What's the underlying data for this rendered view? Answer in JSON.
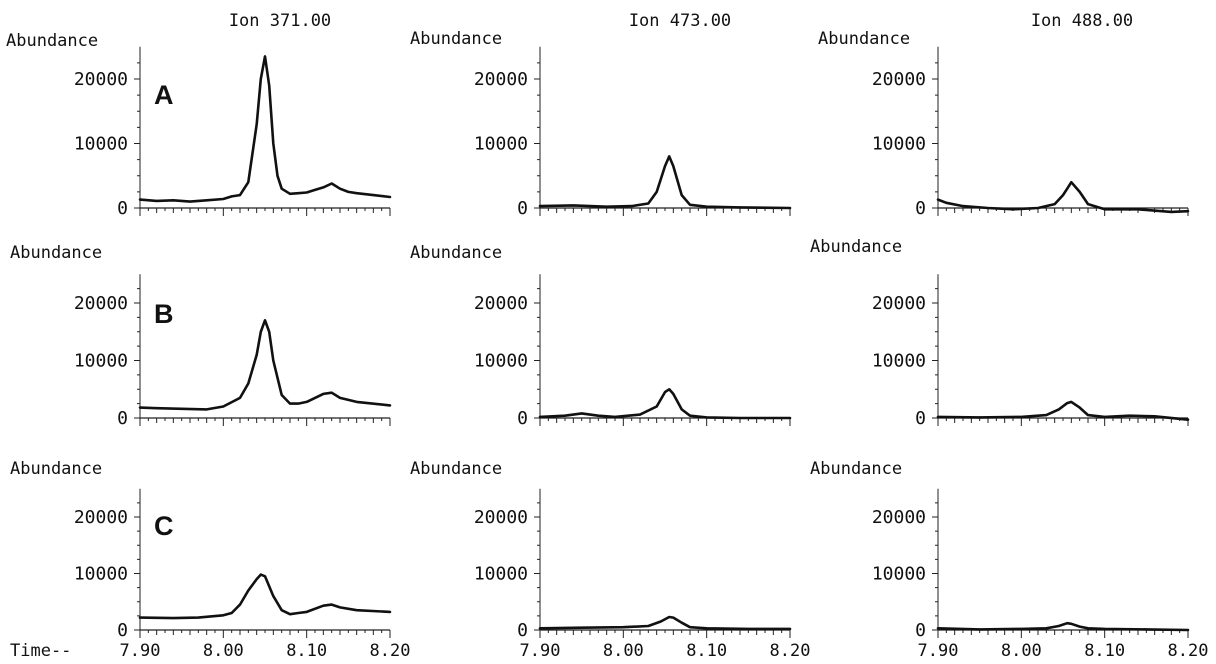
{
  "chart_data": [
    {
      "type": "line",
      "panel": "A",
      "ion": "Ion 371.00",
      "ylabel": "Abundance",
      "xlim": [
        7.9,
        8.2
      ],
      "ylim": [
        0,
        25000
      ],
      "yticks": [
        0,
        10000,
        20000
      ],
      "xticks": [
        7.9,
        8.0,
        8.1,
        8.2
      ],
      "series": [
        {
          "x": [
            7.9,
            7.92,
            7.94,
            7.96,
            7.98,
            8.0,
            8.01,
            8.02,
            8.03,
            8.04,
            8.045,
            8.05,
            8.055,
            8.06,
            8.065,
            8.07,
            8.08,
            8.09,
            8.1,
            8.11,
            8.12,
            8.13,
            8.14,
            8.15,
            8.16,
            8.18,
            8.2
          ],
          "y": [
            1300,
            1100,
            1200,
            1000,
            1200,
            1400,
            1800,
            2000,
            4000,
            13000,
            20000,
            23500,
            19000,
            10000,
            5000,
            3000,
            2200,
            2300,
            2400,
            2800,
            3200,
            3800,
            3000,
            2500,
            2300,
            2000,
            1700
          ]
        }
      ]
    },
    {
      "type": "line",
      "panel": "A",
      "ion": "Ion 473.00",
      "ylabel": "Abundance",
      "xlim": [
        7.9,
        8.2
      ],
      "ylim": [
        0,
        25000
      ],
      "yticks": [
        0,
        10000,
        20000
      ],
      "xticks": [
        7.9,
        8.0,
        8.1,
        8.2
      ],
      "series": [
        {
          "x": [
            7.9,
            7.94,
            7.98,
            8.01,
            8.03,
            8.04,
            8.05,
            8.055,
            8.06,
            8.07,
            8.08,
            8.1,
            8.14,
            8.2
          ],
          "y": [
            300,
            400,
            200,
            300,
            700,
            2500,
            6500,
            8000,
            6500,
            2000,
            500,
            200,
            100,
            0
          ]
        }
      ]
    },
    {
      "type": "line",
      "panel": "A",
      "ion": "Ion 488.00",
      "ylabel": "Abundance",
      "xlim": [
        7.9,
        8.2
      ],
      "ylim": [
        0,
        25000
      ],
      "yticks": [
        0,
        10000,
        20000
      ],
      "xticks": [
        7.9,
        8.0,
        8.1,
        8.2
      ],
      "series": [
        {
          "x": [
            7.9,
            7.91,
            7.93,
            7.96,
            7.99,
            8.02,
            8.04,
            8.05,
            8.055,
            8.06,
            8.07,
            8.08,
            8.1,
            8.14,
            8.18,
            8.2
          ],
          "y": [
            1300,
            800,
            300,
            0,
            -200,
            0,
            600,
            2000,
            3000,
            4000,
            2500,
            600,
            -200,
            -200,
            -600,
            -500
          ]
        }
      ]
    },
    {
      "type": "line",
      "panel": "B",
      "ion": "",
      "ylabel": "Abundance",
      "xlim": [
        7.9,
        8.2
      ],
      "ylim": [
        0,
        25000
      ],
      "yticks": [
        0,
        10000,
        20000
      ],
      "xticks": [
        7.9,
        8.0,
        8.1,
        8.2
      ],
      "series": [
        {
          "x": [
            7.9,
            7.92,
            7.95,
            7.98,
            8.0,
            8.02,
            8.03,
            8.04,
            8.045,
            8.05,
            8.055,
            8.06,
            8.07,
            8.08,
            8.09,
            8.1,
            8.12,
            8.13,
            8.14,
            8.16,
            8.2
          ],
          "y": [
            1800,
            1700,
            1600,
            1500,
            2000,
            3500,
            6000,
            11000,
            15000,
            17000,
            15000,
            10000,
            4000,
            2500,
            2500,
            2800,
            4200,
            4400,
            3500,
            2800,
            2200
          ]
        }
      ]
    },
    {
      "type": "line",
      "panel": "B",
      "ion": "",
      "ylabel": "Abundance",
      "xlim": [
        7.9,
        8.2
      ],
      "ylim": [
        0,
        25000
      ],
      "yticks": [
        0,
        10000,
        20000
      ],
      "xticks": [
        7.9,
        8.0,
        8.1,
        8.2
      ],
      "series": [
        {
          "x": [
            7.9,
            7.93,
            7.95,
            7.97,
            7.99,
            8.02,
            8.04,
            8.05,
            8.055,
            8.06,
            8.07,
            8.08,
            8.1,
            8.14,
            8.2
          ],
          "y": [
            200,
            400,
            800,
            400,
            200,
            600,
            2000,
            4500,
            5000,
            4200,
            1500,
            400,
            100,
            0,
            0
          ]
        }
      ]
    },
    {
      "type": "line",
      "panel": "B",
      "ion": "",
      "ylabel": "Abundance",
      "xlim": [
        7.9,
        8.2
      ],
      "ylim": [
        0,
        25000
      ],
      "yticks": [
        0,
        10000,
        20000
      ],
      "xticks": [
        7.9,
        8.0,
        8.1,
        8.2
      ],
      "series": [
        {
          "x": [
            7.9,
            7.95,
            8.0,
            8.03,
            8.045,
            8.055,
            8.06,
            8.07,
            8.08,
            8.1,
            8.13,
            8.16,
            8.2
          ],
          "y": [
            200,
            100,
            200,
            500,
            1500,
            2600,
            2800,
            1800,
            500,
            200,
            400,
            300,
            -300
          ]
        }
      ]
    },
    {
      "type": "line",
      "panel": "C",
      "ion": "",
      "ylabel": "Abundance",
      "xlim": [
        7.9,
        8.2
      ],
      "ylim": [
        0,
        25000
      ],
      "yticks": [
        0,
        10000,
        20000
      ],
      "xticks": [
        7.9,
        8.0,
        8.1,
        8.2
      ],
      "series": [
        {
          "x": [
            7.9,
            7.94,
            7.97,
            8.0,
            8.01,
            8.02,
            8.03,
            8.04,
            8.045,
            8.05,
            8.06,
            8.07,
            8.08,
            8.09,
            8.1,
            8.12,
            8.13,
            8.14,
            8.16,
            8.2
          ],
          "y": [
            2200,
            2100,
            2200,
            2600,
            3000,
            4500,
            7000,
            9000,
            9800,
            9500,
            6000,
            3500,
            2800,
            3000,
            3200,
            4300,
            4500,
            4000,
            3500,
            3200
          ]
        }
      ]
    },
    {
      "type": "line",
      "panel": "C",
      "ion": "",
      "ylabel": "Abundance",
      "xlim": [
        7.9,
        8.2
      ],
      "ylim": [
        0,
        25000
      ],
      "yticks": [
        0,
        10000,
        20000
      ],
      "xticks": [
        7.9,
        8.0,
        8.1,
        8.2
      ],
      "series": [
        {
          "x": [
            7.9,
            7.95,
            8.0,
            8.03,
            8.045,
            8.055,
            8.06,
            8.07,
            8.08,
            8.1,
            8.15,
            8.2
          ],
          "y": [
            300,
            400,
            500,
            700,
            1500,
            2300,
            2200,
            1300,
            500,
            300,
            200,
            200
          ]
        }
      ]
    },
    {
      "type": "line",
      "panel": "C",
      "ion": "",
      "ylabel": "Abundance",
      "xlim": [
        7.9,
        8.2
      ],
      "ylim": [
        0,
        25000
      ],
      "yticks": [
        0,
        10000,
        20000
      ],
      "xticks": [
        7.9,
        8.0,
        8.1,
        8.2
      ],
      "series": [
        {
          "x": [
            7.9,
            7.95,
            8.0,
            8.03,
            8.045,
            8.055,
            8.06,
            8.07,
            8.08,
            8.1,
            8.15,
            8.2
          ],
          "y": [
            300,
            100,
            200,
            300,
            700,
            1200,
            1100,
            600,
            300,
            200,
            100,
            0
          ]
        }
      ]
    }
  ],
  "x_axis_prefix": "Time--"
}
